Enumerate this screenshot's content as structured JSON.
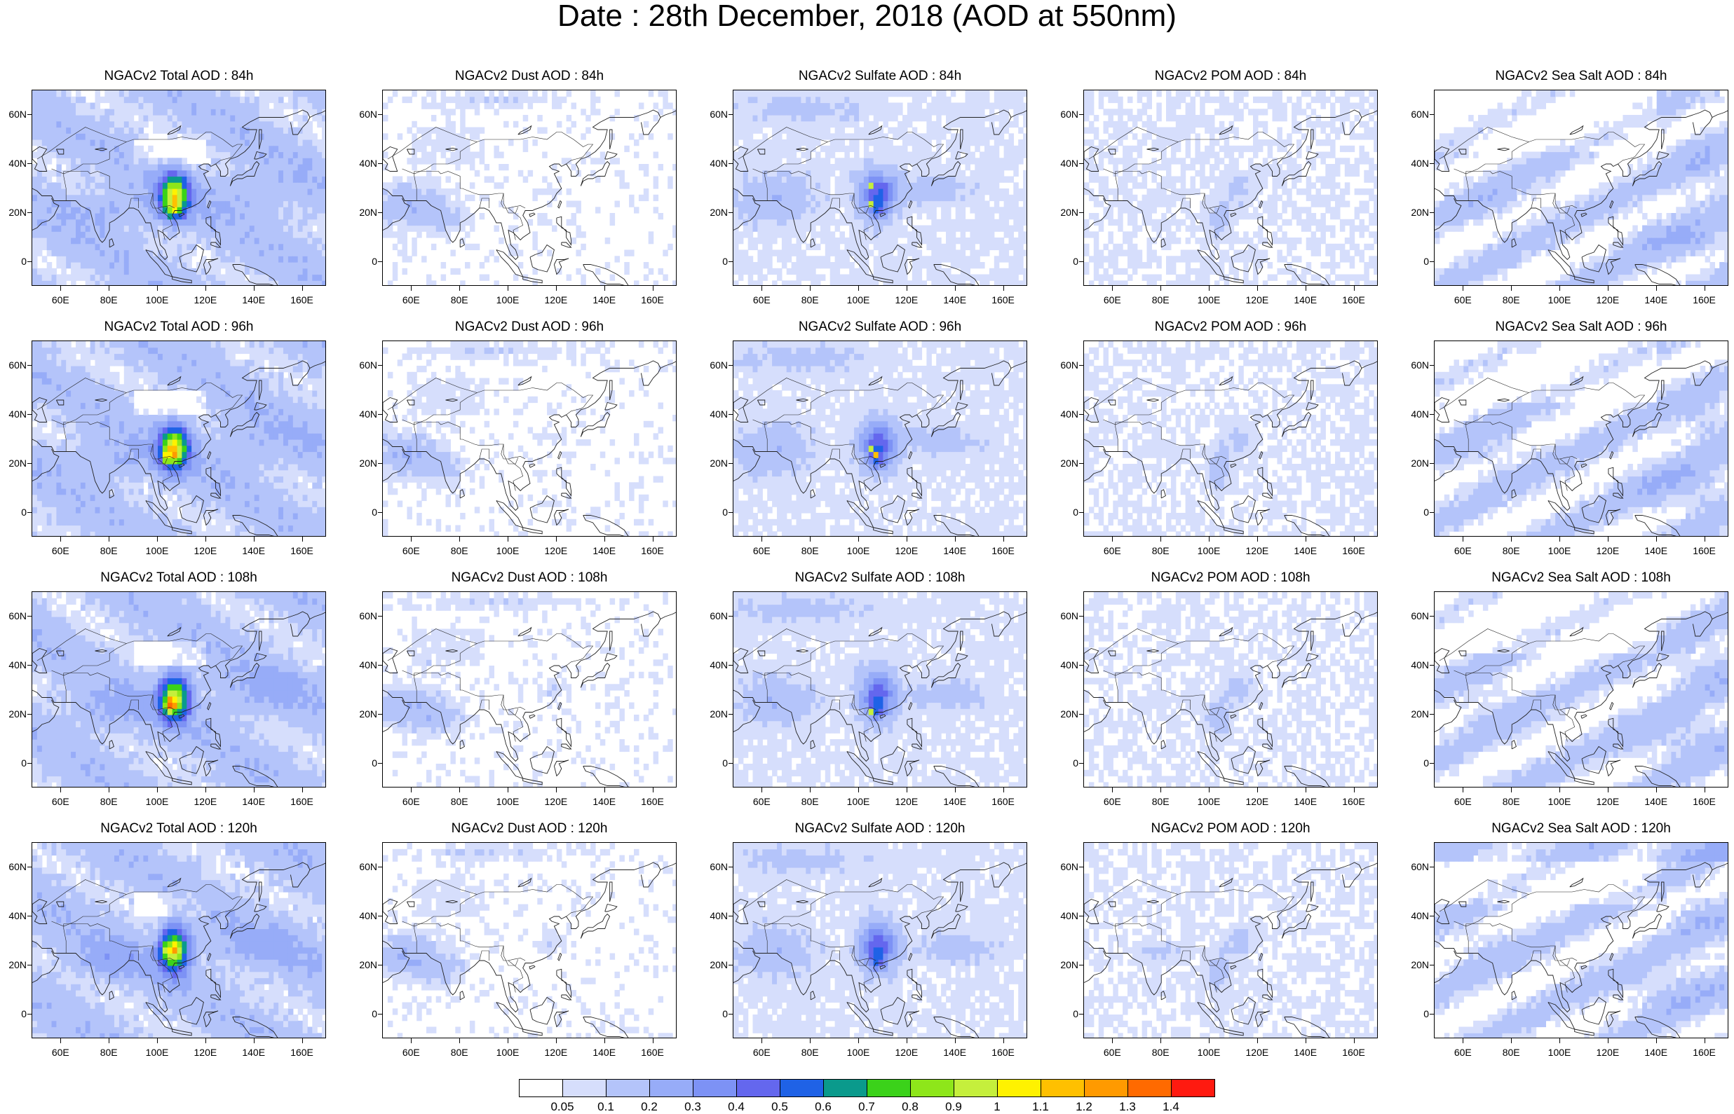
{
  "title": "Date : 28th December, 2018 (AOD at 550nm)",
  "panels": [
    [
      {
        "title": "NGACv2 Total AOD : 84h",
        "species": "total"
      },
      {
        "title": "NGACv2 Dust AOD : 84h",
        "species": "dust"
      },
      {
        "title": "NGACv2 Sulfate AOD : 84h",
        "species": "sulfate"
      },
      {
        "title": "NGACv2 POM AOD : 84h",
        "species": "pom"
      },
      {
        "title": "NGACv2 Sea Salt AOD : 84h",
        "species": "seasalt"
      }
    ],
    [
      {
        "title": "NGACv2 Total AOD : 96h",
        "species": "total"
      },
      {
        "title": "NGACv2 Dust AOD : 96h",
        "species": "dust"
      },
      {
        "title": "NGACv2 Sulfate AOD : 96h",
        "species": "sulfate"
      },
      {
        "title": "NGACv2 POM AOD : 96h",
        "species": "pom"
      },
      {
        "title": "NGACv2 Sea Salt AOD : 96h",
        "species": "seasalt"
      }
    ],
    [
      {
        "title": "NGACv2 Total AOD : 108h",
        "species": "total"
      },
      {
        "title": "NGACv2 Dust AOD : 108h",
        "species": "dust"
      },
      {
        "title": "NGACv2 Sulfate AOD : 108h",
        "species": "sulfate"
      },
      {
        "title": "NGACv2 POM AOD : 108h",
        "species": "pom"
      },
      {
        "title": "NGACv2 Sea Salt AOD : 108h",
        "species": "seasalt"
      }
    ],
    [
      {
        "title": "NGACv2 Total AOD : 120h",
        "species": "total"
      },
      {
        "title": "NGACv2 Dust AOD : 120h",
        "species": "dust"
      },
      {
        "title": "NGACv2 Sulfate AOD : 120h",
        "species": "sulfate"
      },
      {
        "title": "NGACv2 POM AOD : 120h",
        "species": "pom"
      },
      {
        "title": "NGACv2 Sea Salt  AOD : 120h",
        "species": "seasalt"
      }
    ]
  ],
  "lat_ticks": [
    "60N",
    "40N",
    "20N",
    "0"
  ],
  "lon_ticks": [
    "60E",
    "80E",
    "100E",
    "120E",
    "140E",
    "160E"
  ],
  "colorbar": {
    "labels": [
      "0.05",
      "0.1",
      "0.2",
      "0.3",
      "0.4",
      "0.5",
      "0.6",
      "0.7",
      "0.8",
      "0.9",
      "1",
      "1.1",
      "1.2",
      "1.3",
      "1.4"
    ],
    "colors": [
      "#ffffff",
      "#d6defc",
      "#b4c4fa",
      "#97acf8",
      "#7d92f5",
      "#6467ee",
      "#1f62e6",
      "#0a9a8c",
      "#3bd21a",
      "#8ee61a",
      "#c5ef3c",
      "#fff200",
      "#ffc000",
      "#ff9a00",
      "#ff6a00",
      "#ff1a10"
    ]
  }
}
